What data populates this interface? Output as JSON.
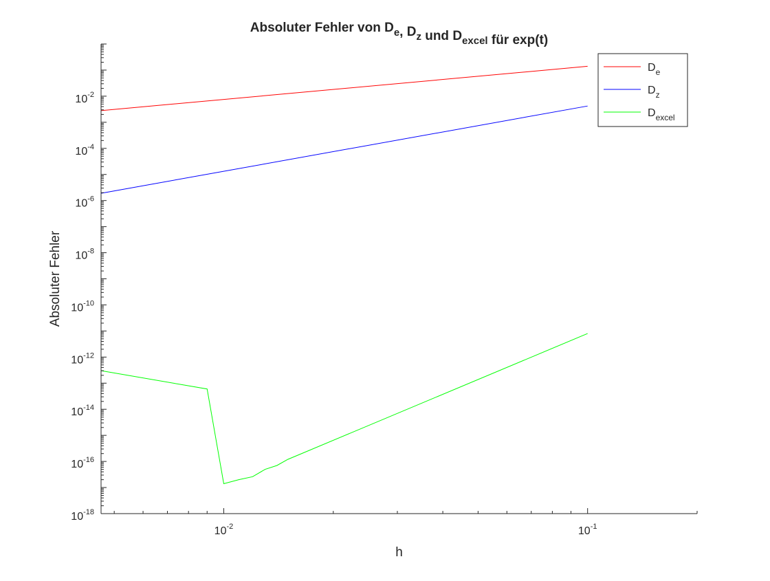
{
  "chart_data": {
    "type": "line",
    "title": {
      "parts": [
        {
          "text": "Absoluter Fehler von D"
        },
        {
          "text": "e",
          "sub": true
        },
        {
          "text": ", D"
        },
        {
          "text": "z",
          "sub": true
        },
        {
          "text": " und D"
        },
        {
          "text": "excel",
          "sub": true
        },
        {
          "text": " für exp(t)"
        }
      ]
    },
    "xlabel": "h",
    "ylabel": "Absoluter Fehler",
    "xscale": "log",
    "yscale": "log",
    "xlim": [
      0.0046,
      0.2
    ],
    "ylim": [
      1e-18,
      1
    ],
    "x_ticks": [
      {
        "value": 0.01,
        "base": "10",
        "exp": "-2"
      },
      {
        "value": 0.1,
        "base": "10",
        "exp": "-1"
      }
    ],
    "y_ticks": [
      {
        "value": 1e-18,
        "base": "10",
        "exp": "-18"
      },
      {
        "value": 1e-16,
        "base": "10",
        "exp": "-16"
      },
      {
        "value": 1e-14,
        "base": "10",
        "exp": "-14"
      },
      {
        "value": 1e-12,
        "base": "10",
        "exp": "-12"
      },
      {
        "value": 1e-10,
        "base": "10",
        "exp": "-10"
      },
      {
        "value": 1e-08,
        "base": "10",
        "exp": "-8"
      },
      {
        "value": 1e-06,
        "base": "10",
        "exp": "-6"
      },
      {
        "value": 0.0001,
        "base": "10",
        "exp": "-4"
      },
      {
        "value": 0.01,
        "base": "10",
        "exp": "-2"
      }
    ],
    "grid": false,
    "legend_position": "top-right",
    "series": [
      {
        "name": "D",
        "name_sub": "e",
        "color": "#ff0000",
        "x": [
          0.0046,
          0.1
        ],
        "y": [
          0.0028,
          0.14
        ]
      },
      {
        "name": "D",
        "name_sub": "z",
        "color": "#0000ff",
        "x": [
          0.0046,
          0.1
        ],
        "y": [
          1.9e-06,
          0.0042
        ]
      },
      {
        "name": "D",
        "name_sub": "excel",
        "color": "#00ff00",
        "x": [
          0.0046,
          0.009,
          0.01,
          0.011,
          0.012,
          0.013,
          0.014,
          0.015,
          0.1
        ],
        "y": [
          3e-13,
          6e-14,
          1.4e-17,
          2e-17,
          2.6e-17,
          5e-17,
          7e-17,
          1.2e-16,
          8e-12
        ]
      }
    ]
  }
}
